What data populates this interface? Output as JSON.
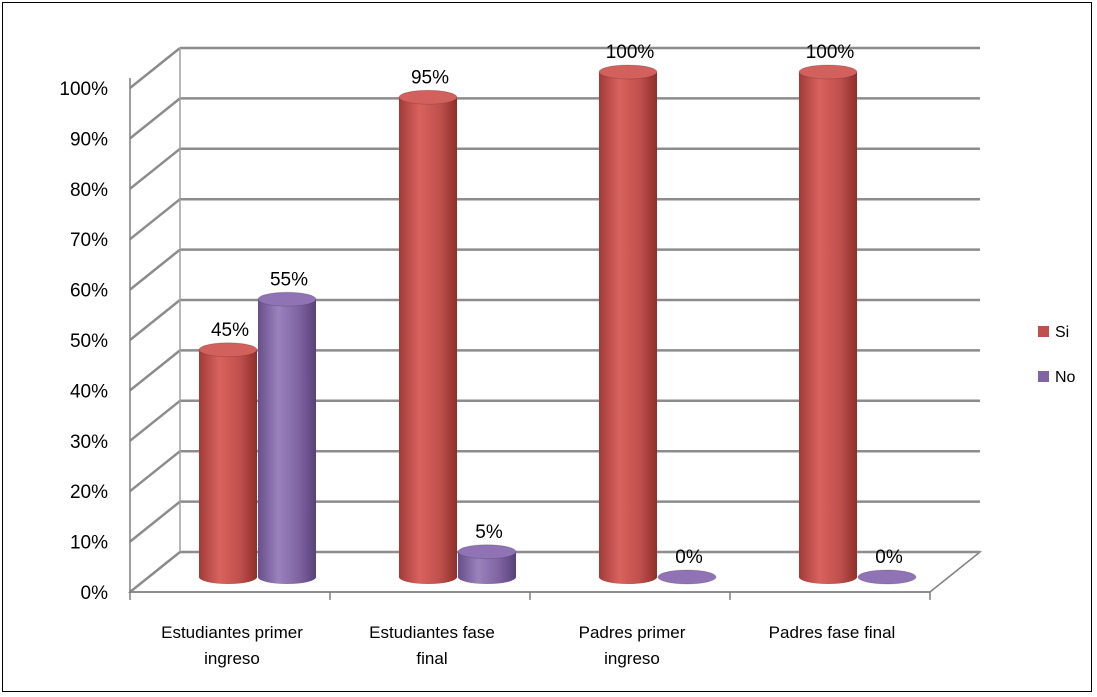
{
  "chart_data": {
    "type": "bar",
    "style": "3d-cylinder",
    "categories": [
      [
        "Estudiantes primer",
        "ingreso"
      ],
      [
        "Estudiantes fase",
        "final"
      ],
      [
        "Padres primer",
        "ingreso"
      ],
      [
        "Padres fase final"
      ]
    ],
    "series": [
      {
        "name": "Si",
        "values": [
          45,
          95,
          100,
          100
        ],
        "labels": [
          "45%",
          "95%",
          "100%",
          "100%"
        ],
        "color": "#c0504d"
      },
      {
        "name": "No",
        "values": [
          55,
          5,
          0,
          0
        ],
        "labels": [
          "55%",
          "5%",
          "0%",
          "0%"
        ],
        "color": "#8064a2"
      }
    ],
    "yticks": [
      "0%",
      "10%",
      "20%",
      "30%",
      "40%",
      "50%",
      "60%",
      "70%",
      "80%",
      "90%",
      "100%"
    ],
    "ylim": [
      0,
      100
    ],
    "grid": true,
    "legend_position": "right"
  }
}
